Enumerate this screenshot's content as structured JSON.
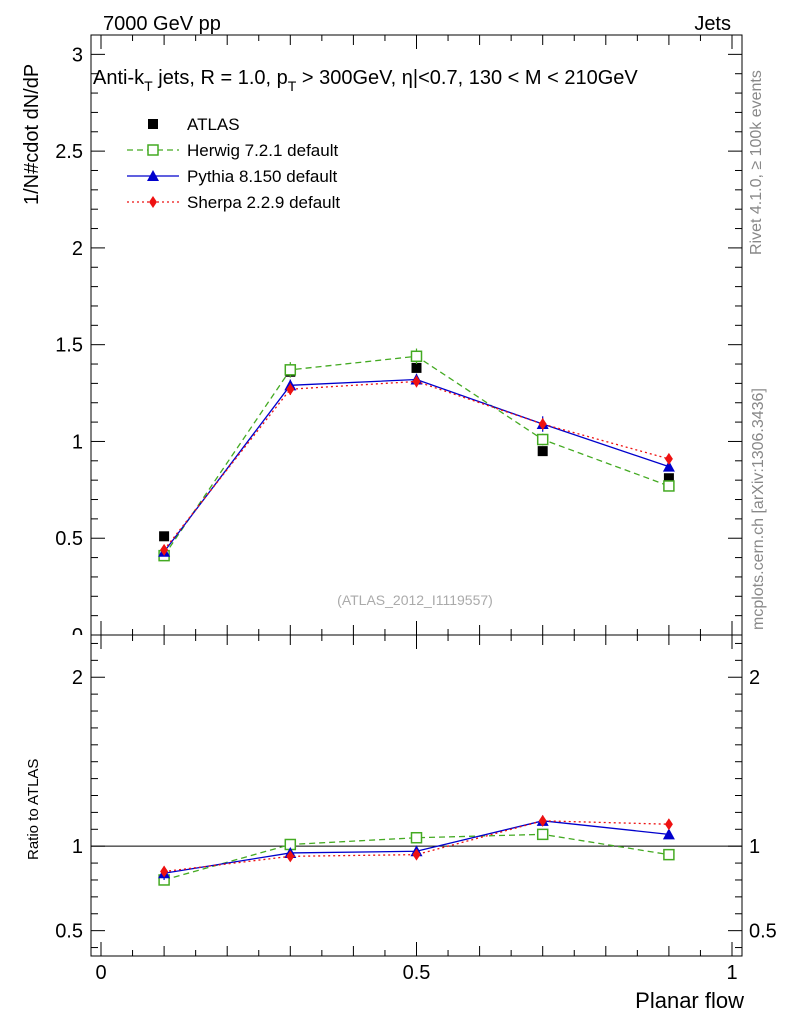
{
  "header": {
    "left": "7000 GeV pp",
    "right": "Jets"
  },
  "side_labels": {
    "rivet": "Rivet 4.1.0, ≥ 100k events",
    "mcplots": "mcplots.cern.ch [arXiv:1306.3436]"
  },
  "chart_data": [
    {
      "type": "scatter",
      "panel": "main",
      "title": "Anti-kT jets, R = 1.0, pT > 300GeV, |η|<0.7, 130 < M < 210GeV",
      "title_parts": {
        "a": "Anti-k",
        "a_sub": "T",
        "b": " jets, R = 1.0, p",
        "b_sub": "T",
        "c": " > 300GeV, ",
        "c_eta": "η",
        "d": "|<0.7, 130 < M < 210GeV"
      },
      "ylabel": "1/N#cdot dN/dP",
      "xlabel": "",
      "watermark": "(ATLAS_2012_I1119557)",
      "xlim": [
        0,
        1
      ],
      "ylim": [
        0,
        3.1
      ],
      "yticks": [
        {
          "v": 0.5,
          "label": "0.5"
        },
        {
          "v": 1,
          "label": "1"
        },
        {
          "v": 1.5,
          "label": "1.5"
        },
        {
          "v": 2,
          "label": "2"
        },
        {
          "v": 2.5,
          "label": "2.5"
        },
        {
          "v": 3,
          "label": "3"
        }
      ],
      "x": [
        0.1,
        0.3,
        0.5,
        0.7,
        0.9
      ],
      "legend_position": "top-left",
      "series": [
        {
          "key": "atlas",
          "name": "ATLAS",
          "values": [
            0.51,
            1.36,
            1.38,
            0.95,
            0.81
          ],
          "errors": [
            0.01,
            0.02,
            0.02,
            0.01,
            0.01
          ],
          "color": "#000000",
          "marker": "square-filled",
          "line": "none"
        },
        {
          "key": "herwig",
          "name": "Herwig 7.2.1 default",
          "values": [
            0.41,
            1.37,
            1.44,
            1.01,
            0.77
          ],
          "errors": [
            0.01,
            0.04,
            0.04,
            0.03,
            0.02
          ],
          "color": "#44aa22",
          "marker": "square-open",
          "line": "dashed"
        },
        {
          "key": "pythia",
          "name": "Pythia 8.150 default",
          "values": [
            0.43,
            1.29,
            1.32,
            1.09,
            0.87
          ],
          "errors": [
            0.01,
            0.03,
            0.03,
            0.04,
            0.02
          ],
          "color": "#0000cc",
          "marker": "triangle",
          "line": "solid"
        },
        {
          "key": "sherpa",
          "name": "Sherpa 2.2.9 default",
          "values": [
            0.44,
            1.27,
            1.31,
            1.09,
            0.91
          ],
          "errors": [
            0.01,
            0.03,
            0.03,
            0.03,
            0.02
          ],
          "color": "#ee1111",
          "marker": "diamond",
          "line": "dotted"
        }
      ]
    },
    {
      "type": "scatter",
      "panel": "ratio",
      "ylabel": "Ratio to ATLAS",
      "xlabel": "Planar flow",
      "xlim": [
        0,
        1
      ],
      "ylim": [
        0.35,
        2.25
      ],
      "yticks": [
        {
          "v": 0.5,
          "label": "0.5"
        },
        {
          "v": 1,
          "label": "1"
        },
        {
          "v": 2,
          "label": "2"
        }
      ],
      "xticks": [
        {
          "v": 0,
          "label": "0"
        },
        {
          "v": 0.5,
          "label": "0.5"
        },
        {
          "v": 1,
          "label": "1"
        }
      ],
      "x": [
        0.1,
        0.3,
        0.5,
        0.7,
        0.9
      ],
      "reference_line": 1,
      "series": [
        {
          "key": "herwig",
          "name": "Herwig 7.2.1 default",
          "values": [
            0.8,
            1.01,
            1.05,
            1.07,
            0.95
          ],
          "errors": [
            0.03,
            0.02,
            0.02,
            0.02,
            0.02
          ],
          "color": "#44aa22",
          "marker": "square-open",
          "line": "dashed"
        },
        {
          "key": "pythia",
          "name": "Pythia 8.150 default",
          "values": [
            0.84,
            0.96,
            0.97,
            1.15,
            1.07
          ],
          "errors": [
            0.04,
            0.02,
            0.02,
            0.03,
            0.02
          ],
          "color": "#0000cc",
          "marker": "triangle",
          "line": "solid"
        },
        {
          "key": "sherpa",
          "name": "Sherpa 2.2.9 default",
          "values": [
            0.85,
            0.94,
            0.95,
            1.15,
            1.13
          ],
          "errors": [
            0.03,
            0.02,
            0.02,
            0.03,
            0.03
          ],
          "color": "#ee1111",
          "marker": "diamond",
          "line": "dotted"
        }
      ]
    }
  ]
}
